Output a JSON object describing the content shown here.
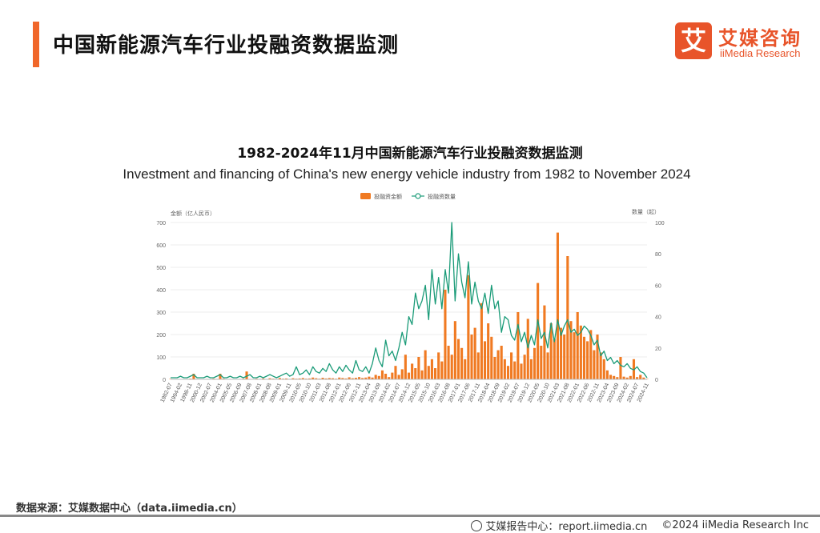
{
  "header": {
    "title": "中国新能源汽车行业投融资数据监测",
    "logo_mark": "艾",
    "logo_cn": "艾媒咨询",
    "logo_en": "iiMedia Research"
  },
  "colors": {
    "accent": "#f0672a",
    "bar": "#f07a22",
    "line": "#1a9b78"
  },
  "chart_data": {
    "type": "bar+line",
    "title": "1982-2024年11月中国新能源汽车行业投融资数据监测",
    "subtitle": "Investment and financing of China's  new energy vehicle industry from 1982 to November 2024",
    "legend": {
      "placement": "top-center",
      "items": [
        "投融资金额",
        "投融资数量"
      ]
    },
    "y_left": {
      "label": "金额（亿人民币）",
      "range": [
        0,
        700
      ],
      "ticks": [
        "0",
        "100",
        "200",
        "300",
        "400",
        "500",
        "600",
        "700"
      ]
    },
    "y_right": {
      "label": "数量（起）",
      "range": [
        0,
        100
      ],
      "ticks": [
        "0",
        "20",
        "40",
        "60",
        "80",
        "100"
      ]
    },
    "grid": true,
    "x_tick_labels": [
      "1982-07",
      "1994-02",
      "1998-11",
      "2000-12",
      "2002-07",
      "2004-01",
      "2005-05",
      "2006-09",
      "2007-08",
      "2008-01",
      "2008-08",
      "2009-01",
      "2009-11",
      "2010-05",
      "2010-10",
      "2011-03",
      "2011-08",
      "2012-01",
      "2012-06",
      "2012-11",
      "2013-04",
      "2013-09",
      "2014-02",
      "2014-07",
      "2014-12",
      "2015-05",
      "2015-10",
      "2016-03",
      "2016-08",
      "2017-01",
      "2017-06",
      "2017-11",
      "2018-04",
      "2018-09",
      "2019-02",
      "2019-07",
      "2019-12",
      "2020-05",
      "2020-10",
      "2021-03",
      "2021-08",
      "2022-01",
      "2022-06",
      "2022-11",
      "2023-04",
      "2023-09",
      "2024-02",
      "2024-07",
      "2024-11"
    ],
    "series": [
      {
        "name": "投融资金额",
        "type": "bar",
        "axis": "left",
        "values": [
          2,
          1,
          0,
          1,
          0,
          2,
          3,
          25,
          2,
          1,
          0,
          2,
          1,
          3,
          2,
          25,
          3,
          1,
          2,
          1,
          0,
          2,
          3,
          35,
          2,
          1,
          3,
          2,
          4,
          1,
          5,
          3,
          2,
          6,
          3,
          4,
          2,
          5,
          3,
          4,
          6,
          3,
          4,
          8,
          5,
          3,
          7,
          4,
          6,
          5,
          3,
          8,
          6,
          4,
          9,
          5,
          7,
          10,
          6,
          8,
          12,
          8,
          20,
          15,
          40,
          25,
          10,
          30,
          60,
          20,
          45,
          110,
          30,
          70,
          50,
          100,
          40,
          130,
          60,
          90,
          50,
          120,
          80,
          400,
          150,
          110,
          260,
          180,
          140,
          90,
          465,
          200,
          230,
          120,
          340,
          170,
          250,
          190,
          100,
          130,
          150,
          90,
          60,
          120,
          80,
          300,
          70,
          110,
          270,
          90,
          140,
          430,
          150,
          330,
          120,
          250,
          180,
          655,
          230,
          200,
          550,
          260,
          210,
          300,
          240,
          190,
          170,
          220,
          130,
          200,
          120,
          90,
          40,
          20,
          15,
          10,
          100,
          12,
          8,
          15,
          90,
          10,
          20,
          8,
          2
        ]
      },
      {
        "name": "投融资数量",
        "type": "line",
        "axis": "right",
        "values": [
          1,
          1,
          1,
          2,
          1,
          1,
          2,
          3,
          1,
          1,
          1,
          2,
          1,
          1,
          2,
          3,
          1,
          1,
          2,
          1,
          1,
          2,
          1,
          2,
          3,
          1,
          1,
          2,
          1,
          2,
          3,
          2,
          1,
          2,
          3,
          4,
          2,
          3,
          8,
          3,
          4,
          6,
          3,
          8,
          5,
          4,
          7,
          5,
          10,
          6,
          4,
          8,
          5,
          9,
          6,
          4,
          12,
          6,
          5,
          8,
          4,
          10,
          20,
          12,
          8,
          25,
          15,
          18,
          12,
          20,
          30,
          22,
          40,
          35,
          55,
          45,
          50,
          60,
          38,
          70,
          48,
          65,
          45,
          70,
          55,
          100,
          50,
          80,
          62,
          52,
          75,
          48,
          62,
          50,
          45,
          55,
          42,
          60,
          45,
          50,
          30,
          40,
          38,
          28,
          25,
          35,
          24,
          30,
          20,
          28,
          22,
          38,
          26,
          30,
          20,
          36,
          24,
          38,
          28,
          34,
          38,
          30,
          32,
          28,
          30,
          34,
          32,
          28,
          22,
          25,
          15,
          18,
          12,
          14,
          10,
          12,
          9,
          8,
          10,
          7,
          6,
          8,
          5,
          4,
          1
        ]
      }
    ]
  },
  "footer": {
    "source": "数据来源：艾媒数据中心（data.iimedia.cn）",
    "report": "艾媒报告中心：report.iimedia.cn",
    "copyright": "©2024  iiMedia Research  Inc"
  }
}
